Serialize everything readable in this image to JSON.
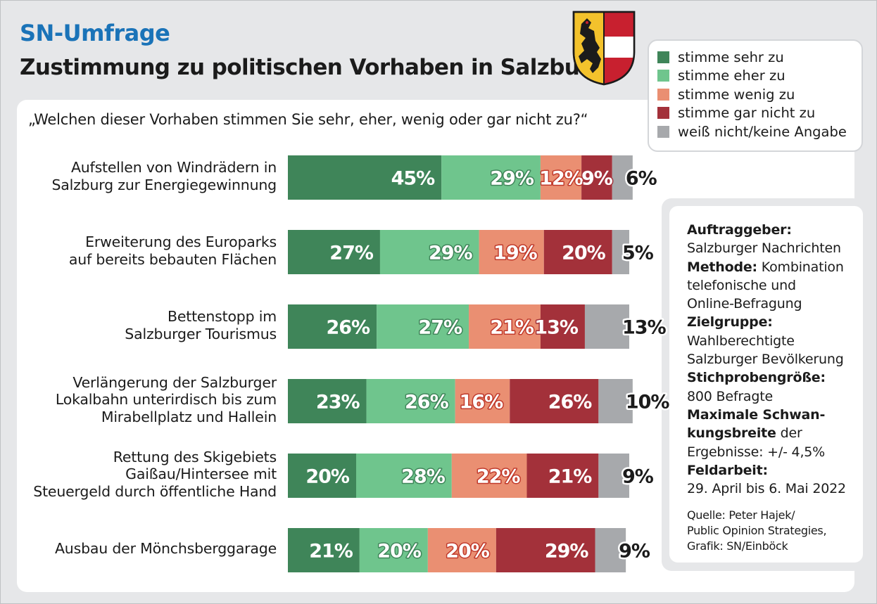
{
  "header": {
    "brand": "SN-Umfrage",
    "title": "Zustimmung zu politischen Vorhaben in Salzburg",
    "question": "„Welchen dieser Vorhaben stimmen Sie sehr, eher, wenig oder gar nicht zu?“",
    "crest_icon": "salzburg-coat-of-arms"
  },
  "colors": {
    "sehr": "#3f8559",
    "eher": "#6fc58d",
    "wenig": "#ea8f72",
    "garnicht": "#a3313a",
    "weissnicht": "#a7a9ac",
    "brand_blue": "#1a73b8"
  },
  "legend": [
    {
      "label": "stimme sehr zu",
      "color": "#3f8559"
    },
    {
      "label": "stimme eher zu",
      "color": "#6fc58d"
    },
    {
      "label": "stimme wenig zu",
      "color": "#ea8f72"
    },
    {
      "label": "stimme gar nicht zu",
      "color": "#a3313a"
    },
    {
      "label": "weiß nicht/keine Angabe",
      "color": "#a7a9ac"
    }
  ],
  "info": {
    "auftraggeber_label": "Auftraggeber:",
    "auftraggeber_value": "Salzburger Nachrichten",
    "methode_label": "Methode:",
    "methode_value_1": " Kombination",
    "methode_value_2": "telefonische und",
    "methode_value_3": "Online-Befragung",
    "zielgruppe_label": "Zielgruppe:",
    "zielgruppe_value_1": "Wahlberechtigte",
    "zielgruppe_value_2": "Salzburger Bevölkerung",
    "stichprobe_label": "Stichprobengröße:",
    "stichprobe_value": "800 Befragte",
    "schwankung_label_1": "Maximale Schwan-",
    "schwankung_label_2": "kungsbreite",
    "schwankung_value_1": " der",
    "schwankung_value_2": "Ergebnisse: +/- 4,5%",
    "feldarbeit_label": "Feldarbeit:",
    "feldarbeit_value": "29. April bis 6. Mai 2022",
    "quelle_1": "Quelle: Peter Hajek/",
    "quelle_2": "Public Opinion Strategies,",
    "quelle_3": "Grafik: SN/Einböck"
  },
  "chart_data": {
    "type": "bar",
    "orientation": "horizontal",
    "stacked": true,
    "unit": "%",
    "categories": [
      [
        "Aufstellen von Windrädern in",
        "Salzburg zur Energiegewinnung"
      ],
      [
        "Erweiterung des Europarks",
        "auf bereits bebauten Flächen"
      ],
      [
        "Bettenstopp im",
        "Salzburger Tourismus"
      ],
      [
        "Verlängerung der Salzburger",
        "Lokalbahn unterirdisch bis zum",
        "Mirabellplatz und Hallein"
      ],
      [
        "Rettung des Skigebiets",
        "Gaißau/Hintersee mit",
        "Steuergeld durch öffentliche Hand"
      ],
      [
        "Ausbau der Mönchsberggarage"
      ]
    ],
    "series": [
      {
        "name": "stimme sehr zu",
        "values": [
          45,
          27,
          26,
          23,
          20,
          21
        ]
      },
      {
        "name": "stimme eher zu",
        "values": [
          29,
          29,
          27,
          26,
          28,
          20
        ]
      },
      {
        "name": "stimme wenig zu",
        "values": [
          12,
          19,
          21,
          16,
          22,
          20
        ]
      },
      {
        "name": "stimme gar nicht zu",
        "values": [
          9,
          20,
          13,
          26,
          21,
          29
        ]
      },
      {
        "name": "weiß nicht/keine Angabe",
        "values": [
          6,
          5,
          13,
          10,
          9,
          9
        ]
      }
    ],
    "legend_position": "top-right",
    "grid": false
  }
}
